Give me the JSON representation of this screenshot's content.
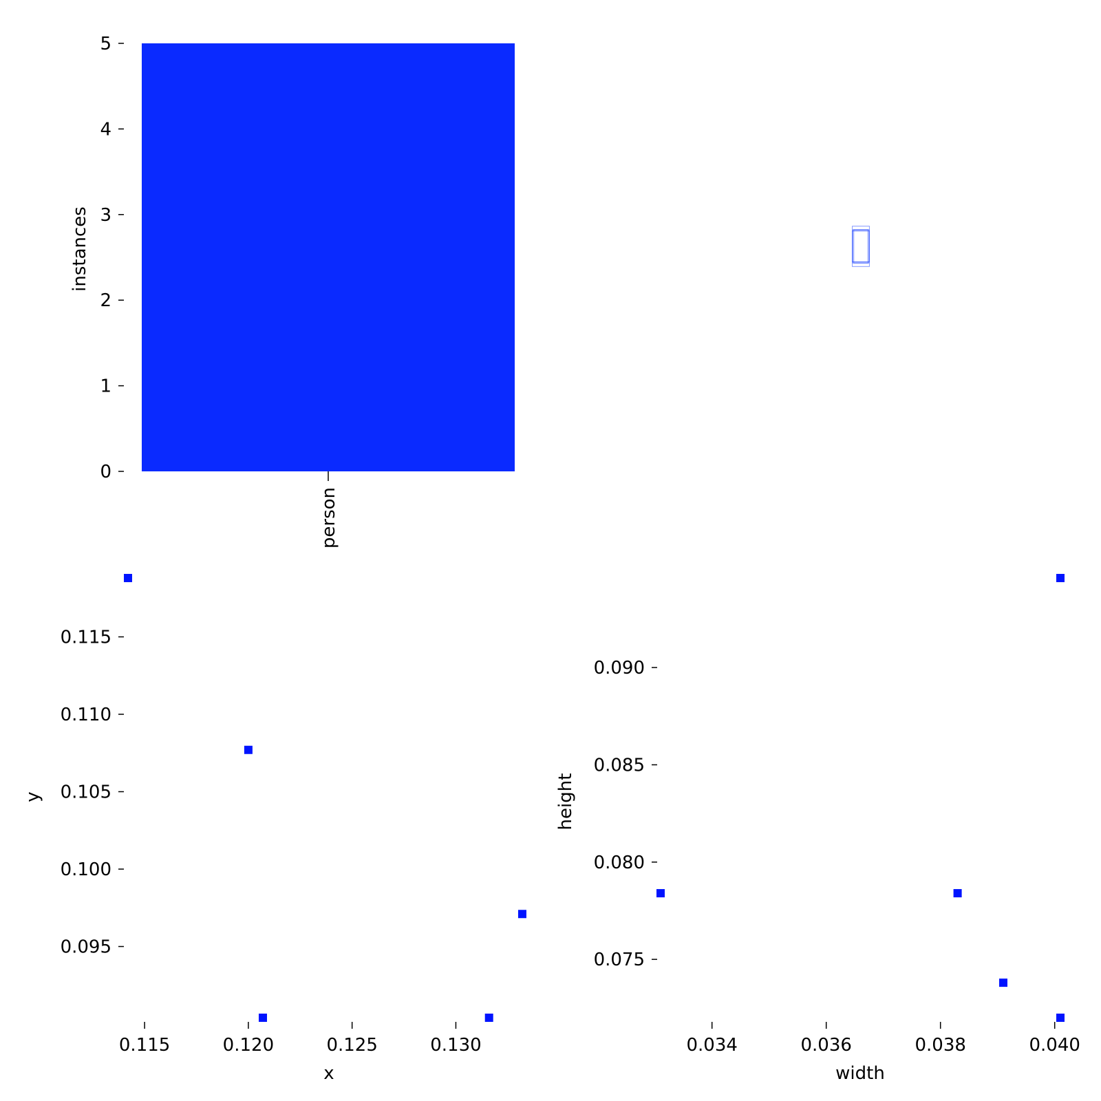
{
  "colors": {
    "bar": "#0a2aff",
    "point": "#0014ff",
    "box": "#3355ff",
    "text": "#000000",
    "background": "#ffffff"
  },
  "chart_data": [
    {
      "type": "bar",
      "categories": [
        "person"
      ],
      "values": [
        5
      ],
      "ylabel": "instances",
      "xlabel": "",
      "ylim": [
        0,
        5
      ],
      "yticks": [
        "0",
        "1",
        "2",
        "3",
        "4",
        "5"
      ],
      "grid": false
    },
    {
      "type": "boxes",
      "description_values": {
        "boxes_wh": [
          [
            0.0331,
            0.0784
          ],
          [
            0.0383,
            0.0784
          ],
          [
            0.0391,
            0.0738
          ],
          [
            0.0401,
            0.072
          ],
          [
            0.0401,
            0.0946
          ]
        ]
      }
    },
    {
      "type": "scatter",
      "xlabel": "x",
      "ylabel": "y",
      "xlim": [
        0.1142,
        0.1335
      ],
      "ylim": [
        0.0904,
        0.1188
      ],
      "xticks": [
        "0.115",
        "0.120",
        "0.125",
        "0.130"
      ],
      "yticks": [
        "0.095",
        "0.100",
        "0.105",
        "0.110",
        "0.115"
      ],
      "points": [
        {
          "x": 0.1142,
          "y": 0.1188
        },
        {
          "x": 0.12,
          "y": 0.1077
        },
        {
          "x": 0.1207,
          "y": 0.0904
        },
        {
          "x": 0.1316,
          "y": 0.0904
        },
        {
          "x": 0.1332,
          "y": 0.0971
        }
      ],
      "grid": false
    },
    {
      "type": "scatter",
      "xlabel": "width",
      "ylabel": "height",
      "xlim": [
        0.0331,
        0.0401
      ],
      "ylim": [
        0.072,
        0.0946
      ],
      "xticks": [
        "0.034",
        "0.036",
        "0.038",
        "0.040"
      ],
      "yticks": [
        "0.075",
        "0.080",
        "0.085",
        "0.090"
      ],
      "points": [
        {
          "x": 0.0331,
          "y": 0.0784
        },
        {
          "x": 0.0383,
          "y": 0.0784
        },
        {
          "x": 0.0391,
          "y": 0.0738
        },
        {
          "x": 0.0401,
          "y": 0.072
        },
        {
          "x": 0.0401,
          "y": 0.0946
        }
      ],
      "grid": false
    }
  ]
}
